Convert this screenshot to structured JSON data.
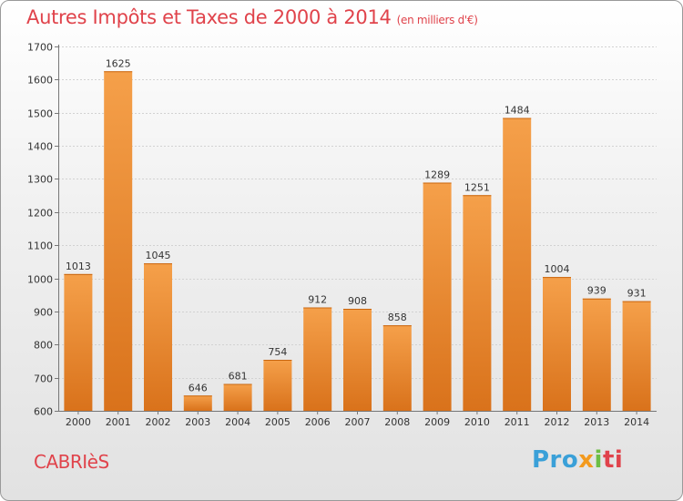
{
  "title": "Autres Impôts et Taxes de 2000 à 2014",
  "subtitle": "(en milliers d'€)",
  "town": "CABRIèS",
  "logo": {
    "part1": "Pro",
    "part2": "x",
    "part3": "i",
    "part4": "ti"
  },
  "chart_data": {
    "type": "bar",
    "title": "Autres Impôts et Taxes de 2000 à 2014",
    "subtitle": "(en milliers d'€)",
    "categories": [
      "2000",
      "2001",
      "2002",
      "2003",
      "2004",
      "2005",
      "2006",
      "2007",
      "2008",
      "2009",
      "2010",
      "2011",
      "2012",
      "2013",
      "2014"
    ],
    "values": [
      1013,
      1625,
      1045,
      646,
      681,
      754,
      912,
      908,
      858,
      1289,
      1251,
      1484,
      1004,
      939,
      931
    ],
    "ylim": [
      600,
      1700
    ],
    "yticks": [
      600,
      700,
      800,
      900,
      1000,
      1100,
      1200,
      1300,
      1400,
      1500,
      1600,
      1700
    ],
    "grid": true,
    "bar_color": "#f5a04a",
    "bar_color_dark": "#d9721b"
  }
}
